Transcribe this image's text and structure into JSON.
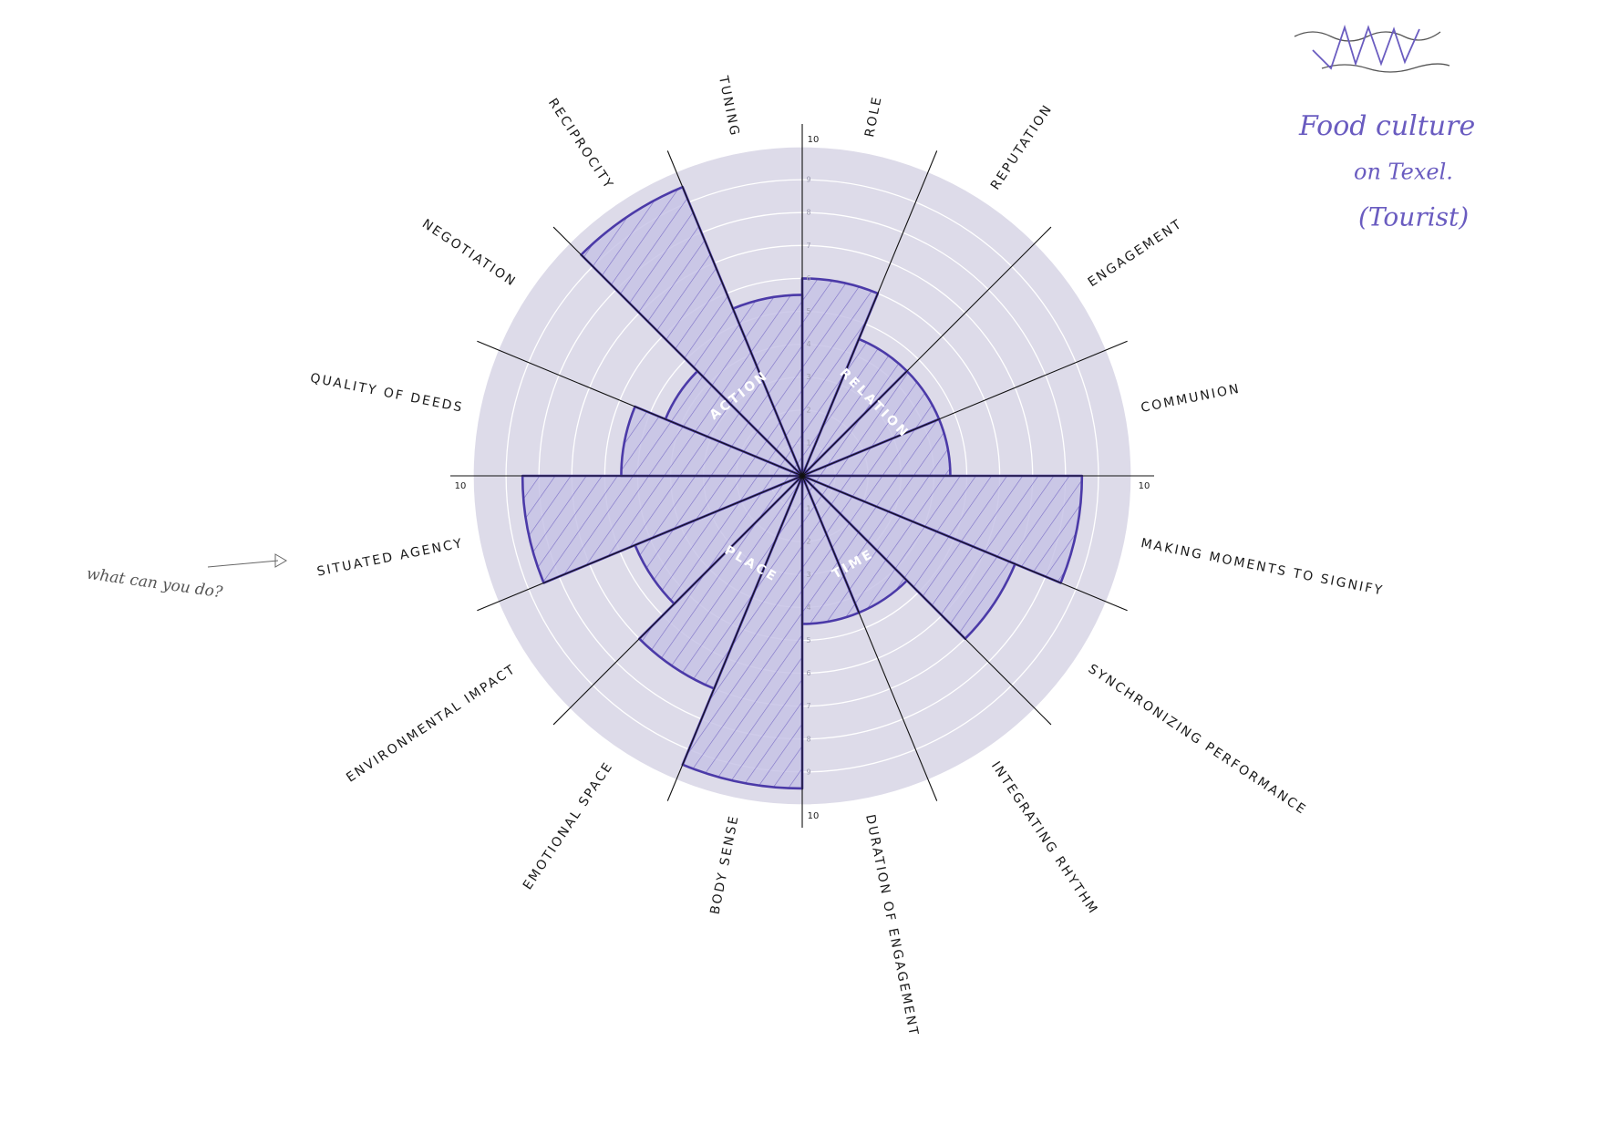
{
  "chart_data": {
    "type": "polar_area",
    "categories": [
      "ROLE",
      "REPUTATION",
      "ENGAGEMENT",
      "COMMUNION",
      "MAKING MOMENTS TO SIGNIFY",
      "SYNCHRONIZING PERFORMANCE",
      "INTEGRATING RHYTHM",
      "DURATION OF ENGAGEMENT",
      "BODY SENSE",
      "EMOTIONAL SPACE",
      "ENVIRONMENTAL IMPACT",
      "SITUATED AGENCY",
      "QUALITY OF DEEDS",
      "NEGOTIATION",
      "RECIPROCITY",
      "TUNING"
    ],
    "values": [
      6,
      4.5,
      4.5,
      4.5,
      8.5,
      7,
      4.5,
      4.5,
      9.5,
      7,
      5.5,
      8.5,
      5.5,
      4.5,
      9.5,
      5.5
    ],
    "color": "#4b3aa8",
    "rlim": [
      0,
      10
    ],
    "rticks": [
      1,
      2,
      3,
      4,
      5,
      6,
      7,
      8,
      9,
      10
    ],
    "group_labels": [
      "ACTION",
      "RELATION",
      "TIME",
      "PLACE"
    ],
    "annotations": [
      "Food culture",
      "on Texel.",
      "(Tourist)",
      "what can you do?"
    ]
  }
}
